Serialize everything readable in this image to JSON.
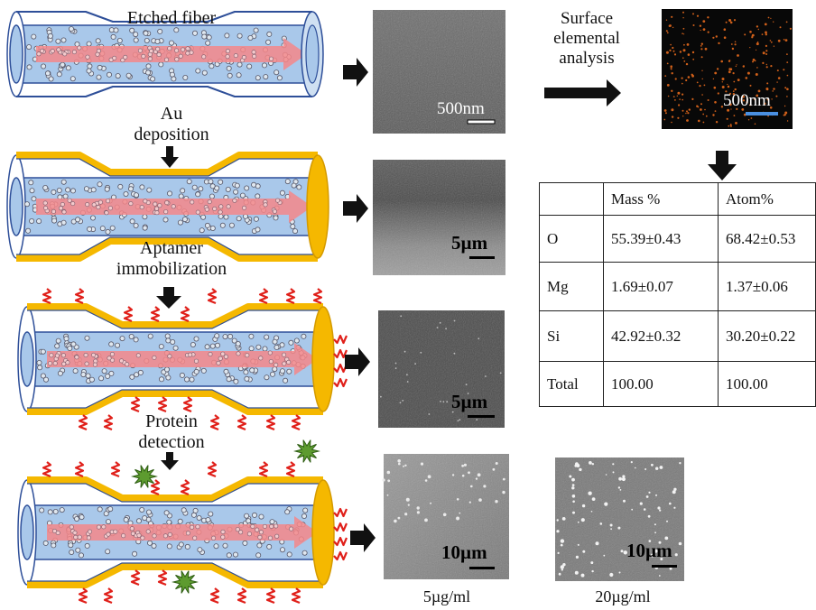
{
  "steps": [
    {
      "label": "Etched fiber"
    },
    {
      "label": "Au\ndeposition"
    },
    {
      "label": "Aptamer\nimmobilization"
    },
    {
      "label": "Protein\ndetection"
    }
  ],
  "analysis_label": "Surface\nelemental\nanalysis",
  "scale_bars": [
    "500nm",
    "500nm",
    "5µm",
    "5µm",
    "10µm",
    "10µm"
  ],
  "concentrations": [
    "5µg/ml",
    "20µg/ml"
  ],
  "table": {
    "headers": [
      "",
      "Mass %",
      "Atom%"
    ],
    "rows": [
      [
        "O",
        "55.39±0.43",
        "68.42±0.53"
      ],
      [
        "Mg",
        "1.69±0.07",
        "1.37±0.06"
      ],
      [
        "Si",
        "42.92±0.32",
        "30.20±0.22"
      ],
      [
        "Total",
        "100.00",
        "100.00"
      ]
    ]
  },
  "colors": {
    "gold": "#f5b800",
    "fiber_blue": "#a9c8ea",
    "outline": "#2e4f99",
    "arrow_pink": "#f4878a",
    "aptamer_red": "#e0201a",
    "protein_green": "#5d9b2f",
    "map_dot": "#d0601a"
  }
}
